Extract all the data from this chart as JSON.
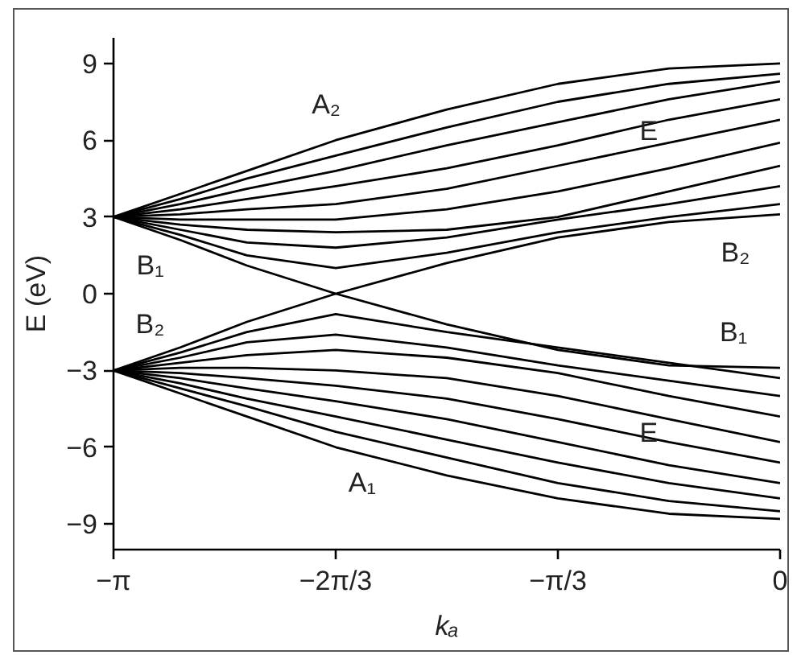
{
  "chart_data": {
    "type": "line",
    "xlabel": "kₐ",
    "ylabel": "E (eV)",
    "xlim": [
      -3.1416,
      0
    ],
    "xticks": [
      {
        "value": -3.1416,
        "label": "−π"
      },
      {
        "value": -2.0944,
        "label": "−2π/3"
      },
      {
        "value": -1.0472,
        "label": "−π/3"
      },
      0
    ],
    "ylim": [
      -10,
      10
    ],
    "yticks": [
      {
        "value": -9,
        "label": "−9"
      },
      {
        "value": -6,
        "label": "−6"
      },
      {
        "value": -3,
        "label": "−3"
      },
      0,
      3,
      6,
      9
    ],
    "line_style": "solid",
    "x": [
      -3.1416,
      -2.827,
      -2.513,
      -2.094,
      -1.571,
      -1.047,
      -0.524,
      0
    ],
    "series": [
      {
        "color": "#000000",
        "values": [
          3,
          3.9,
          4.8,
          6.0,
          7.2,
          8.2,
          8.8,
          9.0
        ]
      },
      {
        "color": "#000000",
        "values": [
          3,
          3.7,
          4.5,
          5.4,
          6.5,
          7.5,
          8.2,
          8.6
        ]
      },
      {
        "color": "#000000",
        "values": [
          3,
          3.5,
          4.1,
          4.8,
          5.8,
          6.7,
          7.6,
          8.3
        ]
      },
      {
        "color": "#000000",
        "values": [
          3,
          3.3,
          3.7,
          4.2,
          4.9,
          5.8,
          6.8,
          7.6
        ]
      },
      {
        "color": "#000000",
        "values": [
          3,
          3.1,
          3.3,
          3.5,
          4.1,
          5.0,
          5.9,
          6.8
        ]
      },
      {
        "color": "#000000",
        "values": [
          3,
          2.9,
          2.9,
          2.9,
          3.3,
          4.0,
          4.9,
          5.9
        ]
      },
      {
        "color": "#000000",
        "values": [
          3,
          2.7,
          2.5,
          2.4,
          2.5,
          3.0,
          4.0,
          5.0
        ]
      },
      {
        "color": "#000000",
        "values": [
          3,
          2.5,
          2.0,
          1.8,
          2.2,
          2.9,
          3.5,
          4.2
        ]
      },
      {
        "color": "#000000",
        "values": [
          3,
          2.3,
          1.5,
          1.0,
          1.6,
          2.4,
          3.0,
          3.5
        ]
      },
      {
        "color": "#000000",
        "values": [
          3,
          2.1,
          1.1,
          0,
          -1.2,
          -2.2,
          -2.8,
          -2.9
        ]
      },
      {
        "color": "#000000",
        "values": [
          -3,
          -2.1,
          -1.1,
          0,
          1.2,
          2.2,
          2.8,
          3.1
        ]
      },
      {
        "color": "#000000",
        "values": [
          -3,
          -2.3,
          -1.5,
          -0.8,
          -1.5,
          -2.1,
          -2.7,
          -3.3
        ]
      },
      {
        "color": "#000000",
        "values": [
          -3,
          -2.5,
          -1.9,
          -1.6,
          -2.1,
          -2.8,
          -3.4,
          -4.0
        ]
      },
      {
        "color": "#000000",
        "values": [
          -3,
          -2.7,
          -2.4,
          -2.2,
          -2.5,
          -3.1,
          -4.0,
          -4.8
        ]
      },
      {
        "color": "#000000",
        "values": [
          -3,
          -2.9,
          -2.9,
          -3.0,
          -3.3,
          -4.0,
          -4.9,
          -5.8
        ]
      },
      {
        "color": "#000000",
        "values": [
          -3,
          -3.1,
          -3.3,
          -3.6,
          -4.1,
          -4.9,
          -5.8,
          -6.6
        ]
      },
      {
        "color": "#000000",
        "values": [
          -3,
          -3.3,
          -3.7,
          -4.2,
          -4.9,
          -5.8,
          -6.7,
          -7.4
        ]
      },
      {
        "color": "#000000",
        "values": [
          -3,
          -3.5,
          -4.1,
          -4.8,
          -5.7,
          -6.6,
          -7.4,
          -8.0
        ]
      },
      {
        "color": "#000000",
        "values": [
          -3,
          -3.7,
          -4.4,
          -5.4,
          -6.4,
          -7.4,
          -8.1,
          -8.5
        ]
      },
      {
        "color": "#000000",
        "values": [
          -3,
          -3.9,
          -4.8,
          -6.0,
          -7.1,
          -8.0,
          -8.6,
          -8.8
        ]
      }
    ],
    "annotations": [
      "A₂",
      "B₁",
      "B₂",
      "E",
      "B₂",
      "B₁",
      "E",
      "A₁"
    ]
  }
}
